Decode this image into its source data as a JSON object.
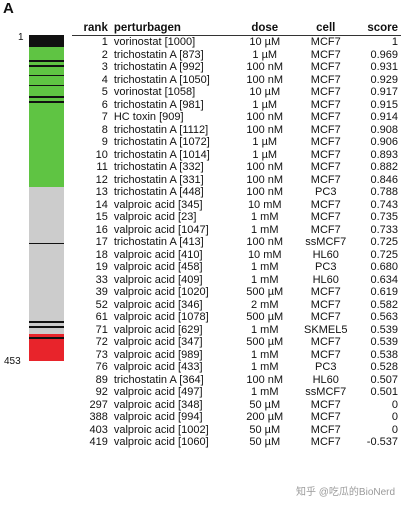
{
  "panel_label": "A",
  "bar": {
    "top_label": "1",
    "bottom_label": "453",
    "total": 453,
    "segments": [
      {
        "from": 1,
        "to": 17,
        "color": "#111111"
      },
      {
        "from": 17,
        "to": 212,
        "color": "#5fc443"
      },
      {
        "from": 212,
        "to": 415,
        "color": "#cccccc"
      },
      {
        "from": 415,
        "to": 453,
        "color": "#e8242b"
      }
    ],
    "tick_ranks": [
      36,
      43,
      56,
      70,
      86,
      93,
      289,
      398,
      405,
      420
    ]
  },
  "table": {
    "headers": {
      "rank": "rank",
      "perturbagen": "perturbagen",
      "dose": "dose",
      "cell": "cell",
      "score": "score"
    },
    "rows": [
      {
        "rank": "1",
        "perturbagen": "vorinostat [1000]",
        "dose": "10 µM",
        "cell": "MCF7",
        "score": "1"
      },
      {
        "rank": "2",
        "perturbagen": "trichostatin A [873]",
        "dose": "1 µM",
        "cell": "MCF7",
        "score": "0.969"
      },
      {
        "rank": "3",
        "perturbagen": "trichostatin A [992]",
        "dose": "100 nM",
        "cell": "MCF7",
        "score": "0.931"
      },
      {
        "rank": "4",
        "perturbagen": "trichostatin A [1050]",
        "dose": "100 nM",
        "cell": "MCF7",
        "score": "0.929"
      },
      {
        "rank": "5",
        "perturbagen": "vorinostat [1058]",
        "dose": "10 µM",
        "cell": "MCF7",
        "score": "0.917"
      },
      {
        "rank": "6",
        "perturbagen": "trichostatin A [981]",
        "dose": "1 µM",
        "cell": "MCF7",
        "score": "0.915"
      },
      {
        "rank": "7",
        "perturbagen": "HC toxin [909]",
        "dose": "100 nM",
        "cell": "MCF7",
        "score": "0.914"
      },
      {
        "rank": "8",
        "perturbagen": "trichostatin A [1112]",
        "dose": "100 nM",
        "cell": "MCF7",
        "score": "0.908"
      },
      {
        "rank": "9",
        "perturbagen": "trichostatin A [1072]",
        "dose": "1 µM",
        "cell": "MCF7",
        "score": "0.906"
      },
      {
        "rank": "10",
        "perturbagen": "trichostatin A [1014]",
        "dose": "1 µM",
        "cell": "MCF7",
        "score": "0.893"
      },
      {
        "rank": "11",
        "perturbagen": "trichostatin A [332]",
        "dose": "100 nM",
        "cell": "MCF7",
        "score": "0.882"
      },
      {
        "rank": "12",
        "perturbagen": "trichostatin A [331]",
        "dose": "100 nM",
        "cell": "MCF7",
        "score": "0.846"
      },
      {
        "rank": "13",
        "perturbagen": "trichostatin A [448]",
        "dose": "100 nM",
        "cell": "PC3",
        "score": "0.788"
      },
      {
        "rank": "14",
        "perturbagen": "valproic acid [345]",
        "dose": "10 mM",
        "cell": "MCF7",
        "score": "0.743"
      },
      {
        "rank": "15",
        "perturbagen": "valproic acid [23]",
        "dose": "1 mM",
        "cell": "MCF7",
        "score": "0.735"
      },
      {
        "rank": "16",
        "perturbagen": "valproic acid [1047]",
        "dose": "1 mM",
        "cell": "MCF7",
        "score": "0.733"
      },
      {
        "rank": "17",
        "perturbagen": "trichostatin A [413]",
        "dose": "100 nM",
        "cell": "ssMCF7",
        "score": "0.725"
      },
      {
        "rank": "18",
        "perturbagen": "valproic acid [410]",
        "dose": "10 mM",
        "cell": "HL60",
        "score": "0.725"
      },
      {
        "rank": "19",
        "perturbagen": "valproic acid [458]",
        "dose": "1 mM",
        "cell": "PC3",
        "score": "0.680"
      },
      {
        "rank": "33",
        "perturbagen": "valproic acid [409]",
        "dose": "1 mM",
        "cell": "HL60",
        "score": "0.634"
      },
      {
        "rank": "39",
        "perturbagen": "valproic acid [1020]",
        "dose": "500 µM",
        "cell": "MCF7",
        "score": "0.619"
      },
      {
        "rank": "52",
        "perturbagen": "valproic acid [346]",
        "dose": "2 mM",
        "cell": "MCF7",
        "score": "0.582"
      },
      {
        "rank": "61",
        "perturbagen": "valproic acid [1078]",
        "dose": "500 µM",
        "cell": "MCF7",
        "score": "0.563"
      },
      {
        "rank": "71",
        "perturbagen": "valproic acid [629]",
        "dose": "1 mM",
        "cell": "SKMEL5",
        "score": "0.539"
      },
      {
        "rank": "72",
        "perturbagen": "valproic acid [347]",
        "dose": "500 µM",
        "cell": "MCF7",
        "score": "0.539"
      },
      {
        "rank": "73",
        "perturbagen": "valproic acid [989]",
        "dose": "1 mM",
        "cell": "MCF7",
        "score": "0.538"
      },
      {
        "rank": "76",
        "perturbagen": "valproic acid [433]",
        "dose": "1 mM",
        "cell": "PC3",
        "score": "0.528"
      },
      {
        "rank": "89",
        "perturbagen": "trichostatin A [364]",
        "dose": "100 nM",
        "cell": "HL60",
        "score": "0.507"
      },
      {
        "rank": "92",
        "perturbagen": "valproic acid [497]",
        "dose": "1 mM",
        "cell": "ssMCF7",
        "score": "0.501"
      },
      {
        "rank": "297",
        "perturbagen": "valproic acid [348]",
        "dose": "50 µM",
        "cell": "MCF7",
        "score": "0"
      },
      {
        "rank": "388",
        "perturbagen": "valproic acid [994]",
        "dose": "200 µM",
        "cell": "MCF7",
        "score": "0"
      },
      {
        "rank": "403",
        "perturbagen": "valproic acid [1002]",
        "dose": "50 µM",
        "cell": "MCF7",
        "score": "0"
      },
      {
        "rank": "419",
        "perturbagen": "valproic acid [1060]",
        "dose": "50 µM",
        "cell": "MCF7",
        "score": "-0.537"
      }
    ]
  },
  "watermark": "知乎 @吃瓜的BioNerd"
}
